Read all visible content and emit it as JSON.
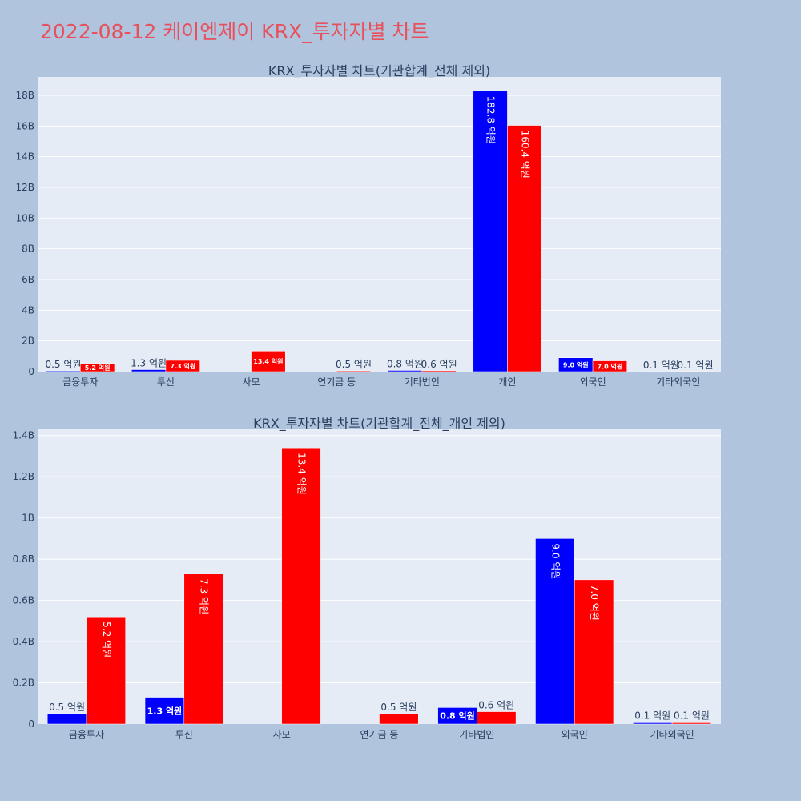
{
  "page": {
    "title": "2022-08-12 케이엔제이 KRX_투자자별 차트"
  },
  "colors": {
    "buy": "#0000ff",
    "sell": "#ff0000",
    "plot_bg": "#e5ecf6",
    "grid": "#ffffff",
    "text": "#2a3f5f",
    "page_bg": "#b0c4de"
  },
  "chart_data": [
    {
      "type": "bar",
      "title": "KRX_투자자별 차트(기관합계_전체 제외)",
      "categories": [
        "금융투자",
        "투신",
        "사모",
        "연기금 등",
        "기타법인",
        "개인",
        "외국인",
        "기타외국인"
      ],
      "series": [
        {
          "values": [
            50000000.0,
            130000000.0,
            0,
            0,
            80000000.0,
            18280000000.0,
            900000000.0,
            10000000.0
          ],
          "labels": [
            "0.5 억원",
            "1.3 억원",
            "",
            "",
            "0.8 억원",
            "182.8 억원",
            "9.0 억원",
            "0.1 억원"
          ]
        },
        {
          "values": [
            520000000.0,
            730000000.0,
            1340000000.0,
            50000000.0,
            60000000.0,
            16040000000.0,
            700000000.0,
            10000000.0
          ],
          "labels": [
            "5.2 억원",
            "7.3 억원",
            "13.4 억원",
            "0.5 억원",
            "0.6 억원",
            "160.4 억원",
            "7.0 억원",
            "0.1 억원"
          ]
        }
      ],
      "ylim": [
        0,
        19200000000.0
      ],
      "yticks": [
        0,
        2000000000.0,
        4000000000.0,
        6000000000.0,
        8000000000.0,
        10000000000.0,
        12000000000.0,
        14000000000.0,
        16000000000.0,
        18000000000.0
      ],
      "yticklabels": [
        "0",
        "2B",
        "4B",
        "6B",
        "8B",
        "10B",
        "12B",
        "14B",
        "16B",
        "18B"
      ],
      "grid": true
    },
    {
      "type": "bar",
      "title": "KRX_투자자별 차트(기관합계_전체_개인 제외)",
      "categories": [
        "금융투자",
        "투신",
        "사모",
        "연기금 등",
        "기타법인",
        "외국인",
        "기타외국인"
      ],
      "series": [
        {
          "values": [
            50000000.0,
            130000000.0,
            0,
            0,
            80000000.0,
            900000000.0,
            10000000.0
          ],
          "labels": [
            "0.5 억원",
            "1.3 억원",
            "",
            "",
            "0.8 억원",
            "9.0 억원",
            "0.1 억원"
          ]
        },
        {
          "values": [
            520000000.0,
            730000000.0,
            1340000000.0,
            50000000.0,
            60000000.0,
            700000000.0,
            10000000.0
          ],
          "labels": [
            "5.2 억원",
            "7.3 억원",
            "13.4 억원",
            "0.5 억원",
            "0.6 억원",
            "7.0 억원",
            "0.1 억원"
          ]
        }
      ],
      "ylim": [
        0,
        1430000000.0
      ],
      "yticks": [
        0,
        200000000.0,
        400000000.0,
        600000000.0,
        800000000.0,
        1000000000.0,
        1200000000.0,
        1400000000.0
      ],
      "yticklabels": [
        "0",
        "0.2B",
        "0.4B",
        "0.6B",
        "0.8B",
        "1B",
        "1.2B",
        "1.4B"
      ],
      "grid": true
    }
  ]
}
